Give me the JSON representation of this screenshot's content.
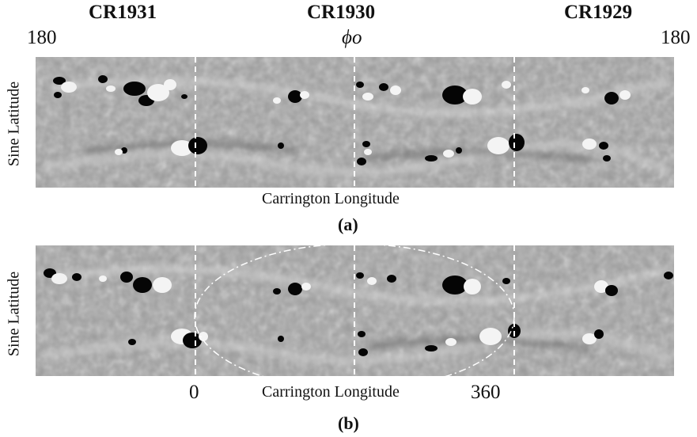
{
  "figure": {
    "rotations": [
      "CR1931",
      "CR1930",
      "CR1929"
    ],
    "top_ticks": [
      "180",
      "ϕo",
      "180"
    ],
    "ylabel": "Sine Latitude",
    "xlabel": "Carrington Longitude",
    "panel_a_label": "(a)",
    "panel_b_label": "(b)",
    "bottom_ticks": [
      "0",
      "360"
    ]
  },
  "colors": {
    "background_gray": "#9c9c9c",
    "negative_polarity": "#050505",
    "positive_polarity": "#f4f4f4",
    "boundary_line": "#ffffff"
  }
}
